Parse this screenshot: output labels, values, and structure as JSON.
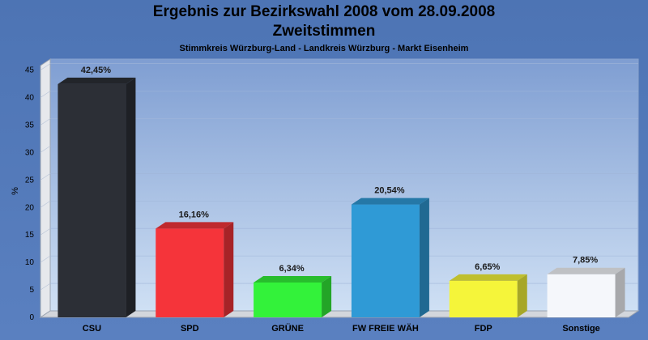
{
  "chart_data": {
    "type": "bar",
    "title": "Ergebnis zur Bezirkswahl 2008 vom 28.09.2008",
    "title_line2": "Zweitstimmen",
    "subtitle": "Stimmkreis Würzburg-Land - Landkreis Würzburg - Markt Eisenheim",
    "ylabel": "%",
    "xlabel": "",
    "ylim": [
      0,
      47
    ],
    "yticks": [
      0,
      5,
      10,
      15,
      20,
      25,
      30,
      35,
      40,
      45
    ],
    "grid": true,
    "categories": [
      "CSU",
      "SPD",
      "GRÜNE",
      "FW FREIE WÄH",
      "FDP",
      "Sonstige"
    ],
    "values": [
      42.45,
      16.16,
      6.34,
      20.54,
      6.65,
      7.85
    ],
    "value_labels": [
      "42,45%",
      "16,16%",
      "6,34%",
      "20,54%",
      "6,65%",
      "7,85%"
    ],
    "colors": [
      "#2c2f36",
      "#f5343a",
      "#33f23a",
      "#2f9ad6",
      "#f5f53a",
      "#f5f7fb"
    ]
  }
}
